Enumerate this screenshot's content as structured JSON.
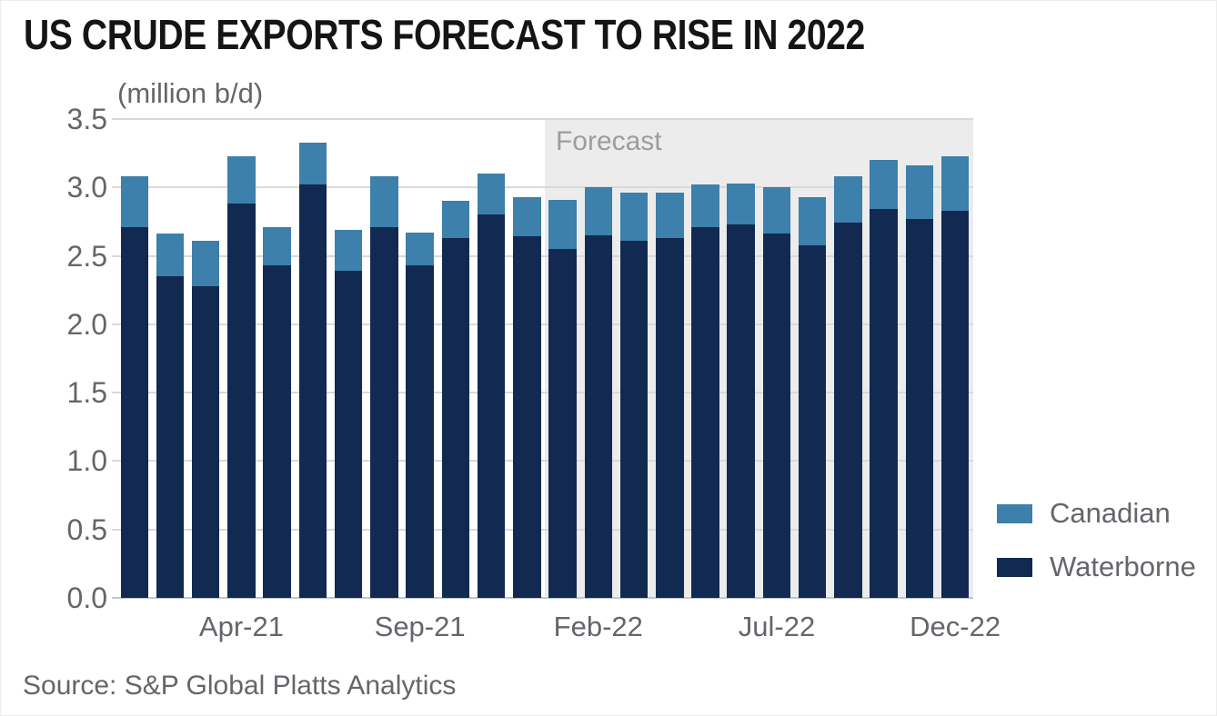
{
  "title": "US CRUDE EXPORTS FORECAST TO RISE IN 2022",
  "subtitle": "(million b/d)",
  "forecast_label": "Forecast",
  "source": "Source: S&P Global Platts Analytics",
  "legend": [
    {
      "label": "Canadian",
      "color": "#3c80ab"
    },
    {
      "label": "Waterborne",
      "color": "#122a52"
    }
  ],
  "colors": {
    "canadian": "#3c80ab",
    "waterborne": "#122a52",
    "forecast_bg": "#ececec",
    "gridline": "#d9d9d9",
    "axis_line": "#bfc7d1",
    "axis_text": "#63666a",
    "forecast_text": "#9a9da0",
    "title_text": "#151515"
  },
  "chart_data": {
    "type": "bar",
    "stacked": true,
    "title": "US CRUDE EXPORTS FORECAST TO RISE IN 2022",
    "ylabel": "(million b/d)",
    "ylim": [
      0,
      3.5
    ],
    "ytick_step": 0.5,
    "yticks": [
      "0.0",
      "0.5",
      "1.0",
      "1.5",
      "2.0",
      "2.5",
      "3.0",
      "3.5"
    ],
    "grid": true,
    "legend_position": "right",
    "categories": [
      "Jan-21",
      "Feb-21",
      "Mar-21",
      "Apr-21",
      "May-21",
      "Jun-21",
      "Jul-21",
      "Aug-21",
      "Sep-21",
      "Oct-21",
      "Nov-21",
      "Dec-21",
      "Jan-22",
      "Feb-22",
      "Mar-22",
      "Apr-22",
      "May-22",
      "Jun-22",
      "Jul-22",
      "Aug-22",
      "Sep-22",
      "Oct-22",
      "Nov-22",
      "Dec-22"
    ],
    "xticks": [
      "Apr-21",
      "Sep-21",
      "Feb-22",
      "Jul-22",
      "Dec-22"
    ],
    "xtick_indices": [
      3,
      8,
      13,
      18,
      23
    ],
    "forecast_start_category": "Jan-22",
    "forecast_start_index": 12,
    "series": [
      {
        "name": "Waterborne",
        "color": "#122a52",
        "values": [
          2.71,
          2.35,
          2.28,
          2.88,
          2.43,
          3.02,
          2.39,
          2.71,
          2.43,
          2.63,
          2.8,
          2.64,
          2.55,
          2.65,
          2.61,
          2.63,
          2.71,
          2.73,
          2.66,
          2.58,
          2.74,
          2.84,
          2.77,
          2.83
        ]
      },
      {
        "name": "Canadian",
        "color": "#3c80ab",
        "values": [
          0.37,
          0.31,
          0.33,
          0.35,
          0.28,
          0.31,
          0.3,
          0.37,
          0.24,
          0.27,
          0.3,
          0.29,
          0.36,
          0.35,
          0.35,
          0.33,
          0.31,
          0.3,
          0.34,
          0.35,
          0.34,
          0.36,
          0.39,
          0.4
        ]
      }
    ]
  }
}
